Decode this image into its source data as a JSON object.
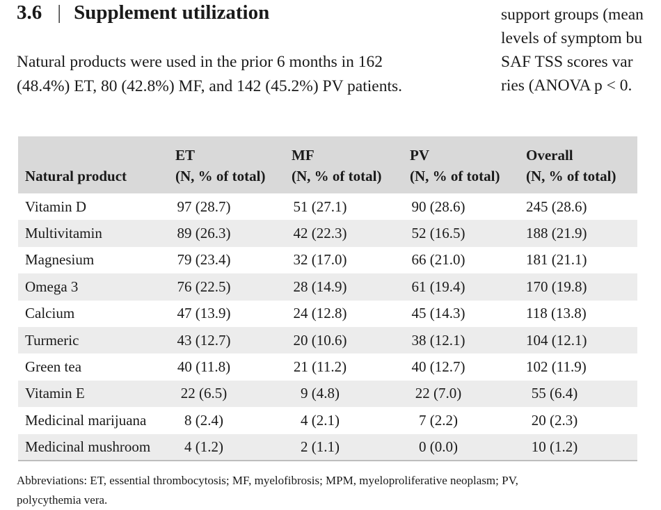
{
  "heading": {
    "number": "3.6",
    "separator": "|",
    "title": "Supplement utilization"
  },
  "paragraph": {
    "line1": "Natural products were used in the prior 6 months in 162",
    "line2": "(48.4%) ET, 80 (42.8%) MF, and 142 (45.2%) PV patients."
  },
  "right_column": {
    "line1": "support groups (mean",
    "line2": "levels of symptom bu",
    "line3": "SAF TSS scores var",
    "line4": "ries (ANOVA p < 0."
  },
  "table": {
    "headers": [
      {
        "line1": "",
        "line2": "Natural product"
      },
      {
        "line1": "ET",
        "line2": "(N, % of total)"
      },
      {
        "line1": "MF",
        "line2": "(N, % of total)"
      },
      {
        "line1": "PV",
        "line2": "(N, % of total)"
      },
      {
        "line1": "Overall",
        "line2": "(N, % of total)"
      }
    ],
    "rows": [
      [
        "Vitamin D",
        "97 (28.7)",
        "51 (27.1)",
        "90 (28.6)",
        "245 (28.6)"
      ],
      [
        "Multivitamin",
        "89 (26.3)",
        "42 (22.3)",
        "52 (16.5)",
        "188 (21.9)"
      ],
      [
        "Magnesium",
        "79 (23.4)",
        "32 (17.0)",
        "66 (21.0)",
        "181 (21.1)"
      ],
      [
        "Omega 3",
        "76 (22.5)",
        "28 (14.9)",
        "61 (19.4)",
        "170 (19.8)"
      ],
      [
        "Calcium",
        "47 (13.9)",
        "24 (12.8)",
        "45 (14.3)",
        "118 (13.8)"
      ],
      [
        "Turmeric",
        "43 (12.7)",
        "20 (10.6)",
        "38 (12.1)",
        "104 (12.1)"
      ],
      [
        "Green tea",
        "40 (11.8)",
        "21 (11.2)",
        "40 (12.7)",
        "102 (11.9)"
      ],
      [
        "Vitamin E",
        "22 (6.5)",
        "9 (4.8)",
        "22 (7.0)",
        "55 (6.4)"
      ],
      [
        "Medicinal marijuana",
        "8 (2.4)",
        "4 (2.1)",
        "7 (2.2)",
        "20 (2.3)"
      ],
      [
        "Medicinal mushroom",
        "4 (1.2)",
        "2 (1.1)",
        "0 (0.0)",
        "10 (1.2)"
      ]
    ]
  },
  "footnote": {
    "line1": "Abbreviations: ET, essential thrombocytosis; MF, myelofibrosis; MPM, myeloproliferative neoplasm; PV,",
    "line2": "polycythemia vera."
  },
  "colors": {
    "header_bg": "#d9d9d9",
    "stripe_bg": "#ececec"
  }
}
